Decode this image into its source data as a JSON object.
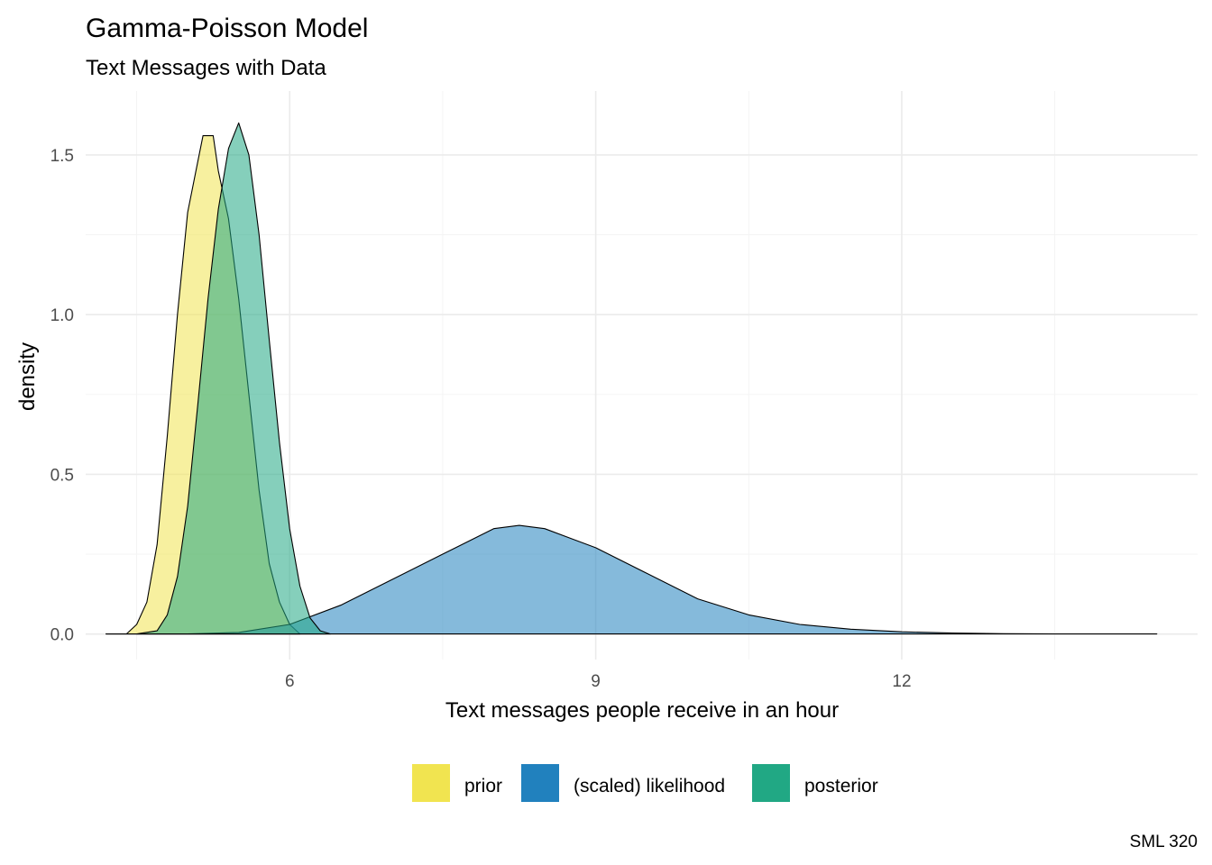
{
  "chart_data": {
    "type": "area",
    "title": "Gamma-Poisson Model",
    "subtitle": "Text Messages with Data",
    "xlabel": "Text messages people receive in an hour",
    "ylabel": "density",
    "caption": "SML 320",
    "xlim": [
      4.0,
      14.9
    ],
    "ylim": [
      -0.08,
      1.7
    ],
    "x_ticks": [
      6,
      9,
      12
    ],
    "x_tick_labels": [
      "6",
      "9",
      "12"
    ],
    "y_ticks": [
      0.0,
      0.5,
      1.0,
      1.5
    ],
    "y_tick_labels": [
      "0.0",
      "0.5",
      "1.0",
      "1.5"
    ],
    "grid": true,
    "legend_position": "bottom",
    "series": [
      {
        "name": "prior",
        "color": "#F1E450",
        "opacity": 0.55,
        "points": [
          [
            4.2,
            0.0
          ],
          [
            4.4,
            0.0
          ],
          [
            4.5,
            0.03
          ],
          [
            4.6,
            0.1
          ],
          [
            4.7,
            0.28
          ],
          [
            4.8,
            0.62
          ],
          [
            4.9,
            1.0
          ],
          [
            5.0,
            1.32
          ],
          [
            5.1,
            1.48
          ],
          [
            5.15,
            1.56
          ],
          [
            5.25,
            1.56
          ],
          [
            5.3,
            1.45
          ],
          [
            5.4,
            1.3
          ],
          [
            5.5,
            1.05
          ],
          [
            5.6,
            0.75
          ],
          [
            5.7,
            0.45
          ],
          [
            5.8,
            0.22
          ],
          [
            5.9,
            0.1
          ],
          [
            6.0,
            0.03
          ],
          [
            6.1,
            0.0
          ]
        ]
      },
      {
        "name": "(scaled) likelihood",
        "color": "#2181BE",
        "opacity": 0.55,
        "points": [
          [
            4.2,
            0.0
          ],
          [
            5.0,
            0.0
          ],
          [
            5.5,
            0.005
          ],
          [
            6.0,
            0.03
          ],
          [
            6.5,
            0.09
          ],
          [
            7.0,
            0.17
          ],
          [
            7.5,
            0.25
          ],
          [
            8.0,
            0.33
          ],
          [
            8.25,
            0.34
          ],
          [
            8.5,
            0.33
          ],
          [
            9.0,
            0.27
          ],
          [
            9.5,
            0.19
          ],
          [
            10.0,
            0.11
          ],
          [
            10.5,
            0.06
          ],
          [
            11.0,
            0.03
          ],
          [
            11.5,
            0.015
          ],
          [
            12.0,
            0.007
          ],
          [
            12.5,
            0.003
          ],
          [
            13.0,
            0.001
          ],
          [
            13.5,
            0.0
          ],
          [
            14.5,
            0.0
          ]
        ]
      },
      {
        "name": "posterior",
        "color": "#21A884",
        "opacity": 0.55,
        "points": [
          [
            4.5,
            0.0
          ],
          [
            4.7,
            0.01
          ],
          [
            4.8,
            0.06
          ],
          [
            4.9,
            0.18
          ],
          [
            5.0,
            0.4
          ],
          [
            5.1,
            0.72
          ],
          [
            5.2,
            1.05
          ],
          [
            5.3,
            1.33
          ],
          [
            5.4,
            1.52
          ],
          [
            5.5,
            1.6
          ],
          [
            5.6,
            1.5
          ],
          [
            5.7,
            1.25
          ],
          [
            5.8,
            0.92
          ],
          [
            5.9,
            0.6
          ],
          [
            6.0,
            0.33
          ],
          [
            6.1,
            0.15
          ],
          [
            6.2,
            0.05
          ],
          [
            6.3,
            0.01
          ],
          [
            6.4,
            0.0
          ]
        ]
      }
    ]
  }
}
